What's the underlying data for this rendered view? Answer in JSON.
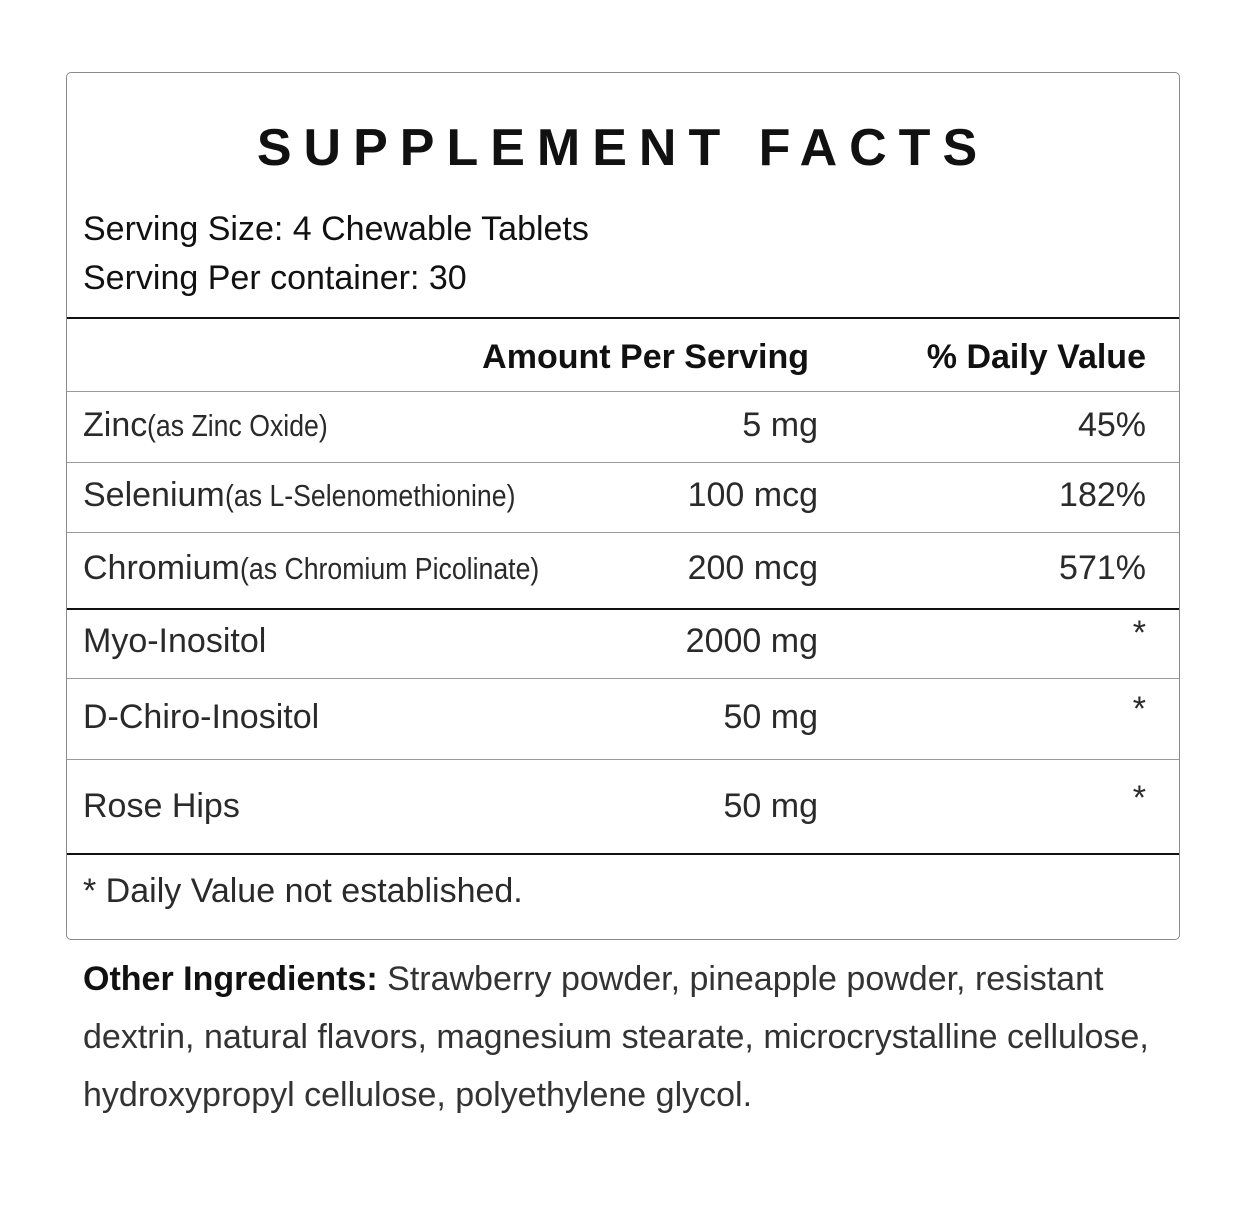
{
  "title": "SUPPLEMENT FACTS",
  "serving_size": "Serving Size: 4 Chewable Tablets",
  "servings_per_container": "Serving Per container: 30",
  "headers": {
    "amount": "Amount Per Serving",
    "daily_value": "% Daily Value"
  },
  "rows": [
    {
      "name": "Zinc",
      "qualifier": "(as Zinc Oxide)",
      "amount": "5 mg",
      "dv": "45%"
    },
    {
      "name": "Selenium",
      "qualifier": "(as L-Selenomethionine)",
      "amount": "100 mcg",
      "dv": "182%"
    },
    {
      "name": "Chromium",
      "qualifier": "(as Chromium Picolinate)",
      "amount": "200 mcg",
      "dv": "571%"
    },
    {
      "name": "Myo-Inositol",
      "qualifier": "",
      "amount": "2000 mg",
      "dv": "*"
    },
    {
      "name": "D-Chiro-Inositol",
      "qualifier": "",
      "amount": "50 mg",
      "dv": "*"
    },
    {
      "name": "Rose Hips",
      "qualifier": "",
      "amount": "50 mg",
      "dv": "*"
    }
  ],
  "footnote": "*  Daily Value not established.",
  "other_ingredients": {
    "label": "Other Ingredients:",
    "text": " Strawberry powder, pineapple powder, resistant dextrin, natural flavors, magnesium stearate, microcrystalline cellulose, hydroxypropyl cellulose, polyethylene glycol."
  }
}
